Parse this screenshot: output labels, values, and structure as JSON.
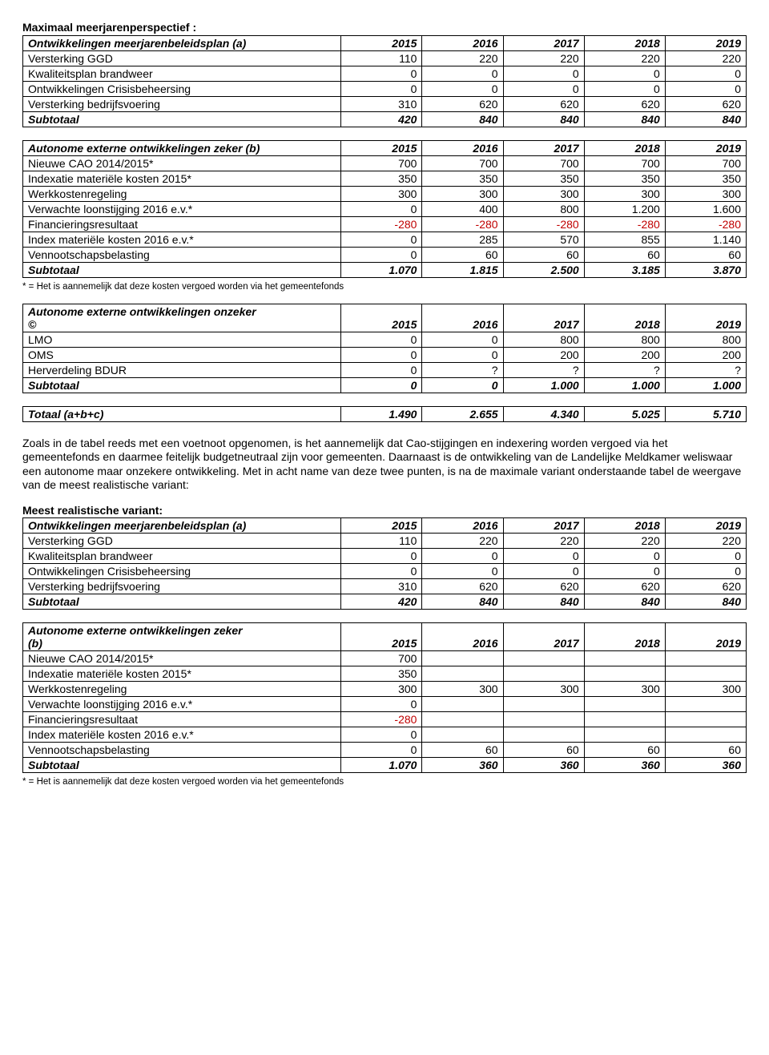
{
  "section1_title": "Maximaal meerjarenperspectief :",
  "years": [
    "2015",
    "2016",
    "2017",
    "2018",
    "2019"
  ],
  "table_a": {
    "header": "Ontwikkelingen meerjarenbeleidsplan (a)",
    "rows": [
      {
        "label": "Versterking GGD",
        "v": [
          "110",
          "220",
          "220",
          "220",
          "220"
        ]
      },
      {
        "label": "Kwaliteitsplan brandweer",
        "v": [
          "0",
          "0",
          "0",
          "0",
          "0"
        ]
      },
      {
        "label": "Ontwikkelingen Crisisbeheersing",
        "v": [
          "0",
          "0",
          "0",
          "0",
          "0"
        ]
      },
      {
        "label": "Versterking bedrijfsvoering",
        "v": [
          "310",
          "620",
          "620",
          "620",
          "620"
        ]
      }
    ],
    "subtotal": {
      "label": "Subtotaal",
      "v": [
        "420",
        "840",
        "840",
        "840",
        "840"
      ]
    }
  },
  "table_b": {
    "header": "Autonome externe ontwikkelingen zeker (b)",
    "rows": [
      {
        "label": "Nieuwe CAO 2014/2015*",
        "v": [
          "700",
          "700",
          "700",
          "700",
          "700"
        ]
      },
      {
        "label": "Indexatie materiële kosten 2015*",
        "v": [
          "350",
          "350",
          "350",
          "350",
          "350"
        ]
      },
      {
        "label": "Werkkostenregeling",
        "v": [
          "300",
          "300",
          "300",
          "300",
          "300"
        ]
      },
      {
        "label": "Verwachte loonstijging 2016 e.v.*",
        "v": [
          "0",
          "400",
          "800",
          "1.200",
          "1.600"
        ]
      },
      {
        "label": "Financieringsresultaat",
        "v": [
          "-280",
          "-280",
          "-280",
          "-280",
          "-280"
        ],
        "neg": true
      },
      {
        "label": "Index materiële kosten 2016 e.v.*",
        "v": [
          "0",
          "285",
          "570",
          "855",
          "1.140"
        ]
      },
      {
        "label": "Vennootschapsbelasting",
        "v": [
          "0",
          "60",
          "60",
          "60",
          "60"
        ]
      }
    ],
    "subtotal": {
      "label": "Subtotaal",
      "v": [
        "1.070",
        "1.815",
        "2.500",
        "3.185",
        "3.870"
      ]
    }
  },
  "footnote": "* = Het is aannemelijk dat deze kosten vergoed worden via het gemeentefonds",
  "table_c": {
    "header_line1": "Autonome externe ontwikkelingen onzeker",
    "header_line2": "©",
    "rows": [
      {
        "label": "LMO",
        "v": [
          "0",
          "0",
          "800",
          "800",
          "800"
        ]
      },
      {
        "label": "OMS",
        "v": [
          "0",
          "0",
          "200",
          "200",
          "200"
        ]
      },
      {
        "label": "Herverdeling BDUR",
        "v": [
          "0",
          "?",
          "?",
          "?",
          "?"
        ]
      }
    ],
    "subtotal": {
      "label": "Subtotaal",
      "v": [
        "0",
        "0",
        "1.000",
        "1.000",
        "1.000"
      ]
    }
  },
  "table_total": {
    "label": "Totaal (a+b+c)",
    "v": [
      "1.490",
      "2.655",
      "4.340",
      "5.025",
      "5.710"
    ]
  },
  "para1": "Zoals in de tabel reeds met een voetnoot opgenomen, is het aannemelijk dat Cao-stijgingen en indexering worden vergoed via het gemeentefonds en daarmee feitelijk budgetneutraal zijn voor gemeenten. Daarnaast is de ontwikkeling van de Landelijke Meldkamer weliswaar een autonome maar onzekere ontwikkeling. Met in acht name van deze twee punten, is na de maximale variant onderstaande tabel de weergave van de meest realistische variant:",
  "section2_title": "Meest realistische variant:",
  "table_a2": {
    "header": "Ontwikkelingen meerjarenbeleidsplan (a)",
    "rows": [
      {
        "label": "Versterking GGD",
        "v": [
          "110",
          "220",
          "220",
          "220",
          "220"
        ]
      },
      {
        "label": "Kwaliteitsplan brandweer",
        "v": [
          "0",
          "0",
          "0",
          "0",
          "0"
        ]
      },
      {
        "label": "Ontwikkelingen Crisisbeheersing",
        "v": [
          "0",
          "0",
          "0",
          "0",
          "0"
        ]
      },
      {
        "label": "Versterking bedrijfsvoering",
        "v": [
          "310",
          "620",
          "620",
          "620",
          "620"
        ]
      }
    ],
    "subtotal": {
      "label": "Subtotaal",
      "v": [
        "420",
        "840",
        "840",
        "840",
        "840"
      ]
    }
  },
  "table_b2": {
    "header_line1": "Autonome externe ontwikkelingen zeker",
    "header_line2": "(b)",
    "rows": [
      {
        "label": "Nieuwe CAO 2014/2015*",
        "v": [
          "700",
          "",
          "",
          "",
          ""
        ]
      },
      {
        "label": "Indexatie materiële kosten 2015*",
        "v": [
          "350",
          "",
          "",
          "",
          ""
        ]
      },
      {
        "label": "Werkkostenregeling",
        "v": [
          "300",
          "300",
          "300",
          "300",
          "300"
        ]
      },
      {
        "label": "Verwachte loonstijging 2016 e.v.*",
        "v": [
          "0",
          "",
          "",
          "",
          ""
        ]
      },
      {
        "label": "Financieringsresultaat",
        "v": [
          "-280",
          "",
          "",
          "",
          ""
        ],
        "neg": true
      },
      {
        "label": "Index materiële kosten 2016 e.v.*",
        "v": [
          "0",
          "",
          "",
          "",
          ""
        ]
      },
      {
        "label": "Vennootschapsbelasting",
        "v": [
          "0",
          "60",
          "60",
          "60",
          "60"
        ]
      }
    ],
    "subtotal": {
      "label": "Subtotaal",
      "v": [
        "1.070",
        "360",
        "360",
        "360",
        "360"
      ]
    }
  }
}
